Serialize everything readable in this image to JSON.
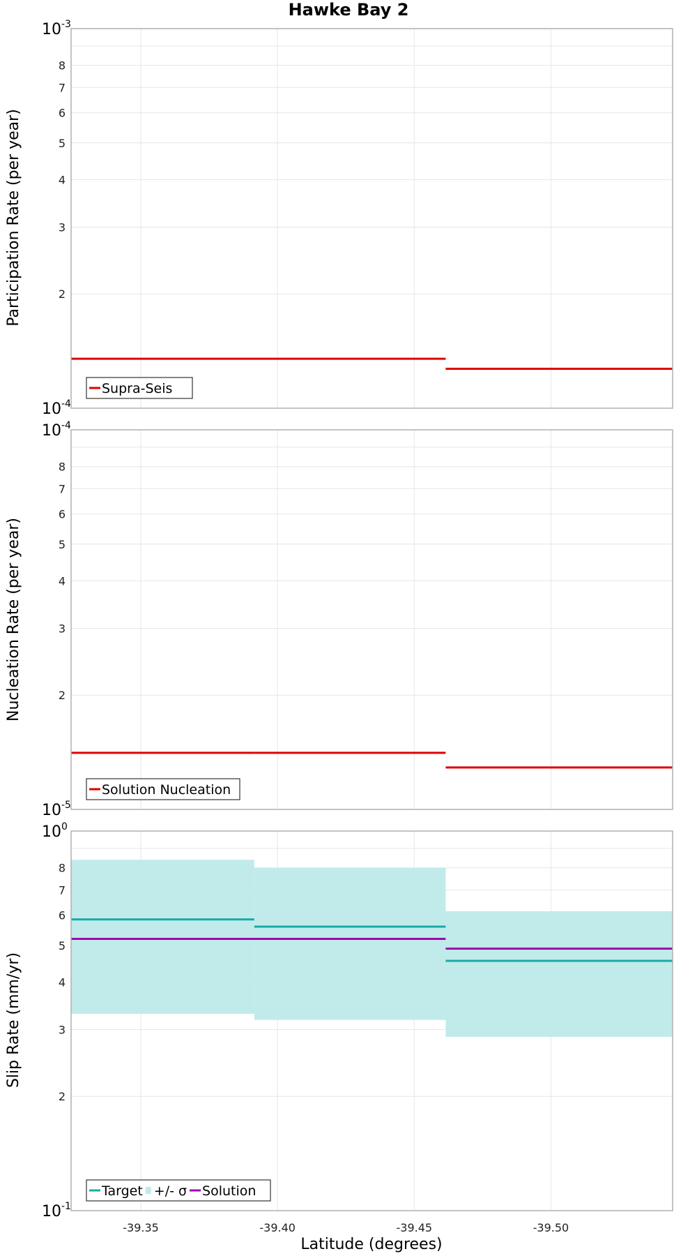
{
  "colors": {
    "supra": "#e00000",
    "nucleation": "#e00000",
    "target": "#19aaa6",
    "band": "#c0ebea",
    "solution": "#a100b0",
    "grid": "#e6e6e6",
    "frame": "#b0b0b0"
  },
  "chart_data": [
    {
      "type": "line",
      "title": "Hawke Bay 2",
      "ylabel": "Participation Rate (per year)",
      "xlabel": "",
      "yscale": "log",
      "xlim": [
        -39.3245,
        -39.5445
      ],
      "ylim": [
        0.0001,
        0.001
      ],
      "grid": true,
      "legend_position": "bottom-left",
      "x_ticks": [
        "-39.35",
        "-39.40",
        "-39.45",
        "-39.50"
      ],
      "y_decade_labels": [
        {
          "base": "10",
          "exp": "-3"
        },
        {
          "base": "10",
          "exp": "-4"
        }
      ],
      "y_minor_labels": [
        "8",
        "7",
        "6",
        "5",
        "4",
        "3",
        "2"
      ],
      "series": [
        {
          "name": "Supra-Seis",
          "color": "#e00000",
          "segments": [
            {
              "x0": -39.3245,
              "x1": -39.4615,
              "y": 0.000135
            },
            {
              "x0": -39.4615,
              "x1": -39.5445,
              "y": 0.000127
            }
          ]
        }
      ]
    },
    {
      "type": "line",
      "title": "",
      "ylabel": "Nucleation Rate (per year)",
      "xlabel": "",
      "yscale": "log",
      "xlim": [
        -39.3245,
        -39.5445
      ],
      "ylim": [
        1e-05,
        0.0001
      ],
      "grid": true,
      "legend_position": "bottom-left",
      "x_ticks": [
        "-39.35",
        "-39.40",
        "-39.45",
        "-39.50"
      ],
      "y_decade_labels": [
        {
          "base": "10",
          "exp": "-4"
        },
        {
          "base": "10",
          "exp": "-5"
        }
      ],
      "y_minor_labels": [
        "8",
        "7",
        "6",
        "5",
        "4",
        "3",
        "2"
      ],
      "series": [
        {
          "name": "Solution Nucleation",
          "color": "#e00000",
          "segments": [
            {
              "x0": -39.3245,
              "x1": -39.3915,
              "y": 1.41e-05
            },
            {
              "x0": -39.3915,
              "x1": -39.4615,
              "y": 1.41e-05
            },
            {
              "x0": -39.4615,
              "x1": -39.5445,
              "y": 1.29e-05
            }
          ]
        }
      ]
    },
    {
      "type": "line",
      "title": "",
      "ylabel": "Slip Rate (mm/yr)",
      "xlabel": "Latitude (degrees)",
      "yscale": "log",
      "xlim": [
        -39.3245,
        -39.5445
      ],
      "ylim": [
        0.1,
        1
      ],
      "grid": true,
      "legend_position": "bottom-left",
      "x_ticks": [
        "-39.35",
        "-39.40",
        "-39.45",
        "-39.50"
      ],
      "y_decade_labels": [
        {
          "base": "10",
          "exp": "0"
        },
        {
          "base": "10",
          "exp": "-1"
        }
      ],
      "y_minor_labels": [
        "8",
        "7",
        "6",
        "5",
        "4",
        "3",
        "2"
      ],
      "band": {
        "name": "+/- σ",
        "color": "#c0ebea",
        "segments": [
          {
            "x0": -39.3245,
            "x1": -39.3915,
            "low": 0.33,
            "high": 0.84
          },
          {
            "x0": -39.3915,
            "x1": -39.4615,
            "low": 0.318,
            "high": 0.8
          },
          {
            "x0": -39.4615,
            "x1": -39.5445,
            "low": 0.287,
            "high": 0.615
          }
        ]
      },
      "series": [
        {
          "name": "Target",
          "color": "#19aaa6",
          "segments": [
            {
              "x0": -39.3245,
              "x1": -39.3915,
              "y": 0.585
            },
            {
              "x0": -39.3915,
              "x1": -39.4615,
              "y": 0.56
            },
            {
              "x0": -39.4615,
              "x1": -39.5445,
              "y": 0.455
            }
          ]
        },
        {
          "name": "Solution",
          "color": "#a100b0",
          "segments": [
            {
              "x0": -39.3245,
              "x1": -39.4615,
              "y": 0.52
            },
            {
              "x0": -39.4615,
              "x1": -39.5445,
              "y": 0.49
            }
          ]
        }
      ],
      "legend_items": [
        {
          "name": "Target",
          "kind": "line",
          "color": "#19aaa6"
        },
        {
          "name": "+/- σ",
          "kind": "box",
          "color": "#c0ebea"
        },
        {
          "name": "Solution",
          "kind": "line",
          "color": "#a100b0"
        }
      ]
    }
  ]
}
